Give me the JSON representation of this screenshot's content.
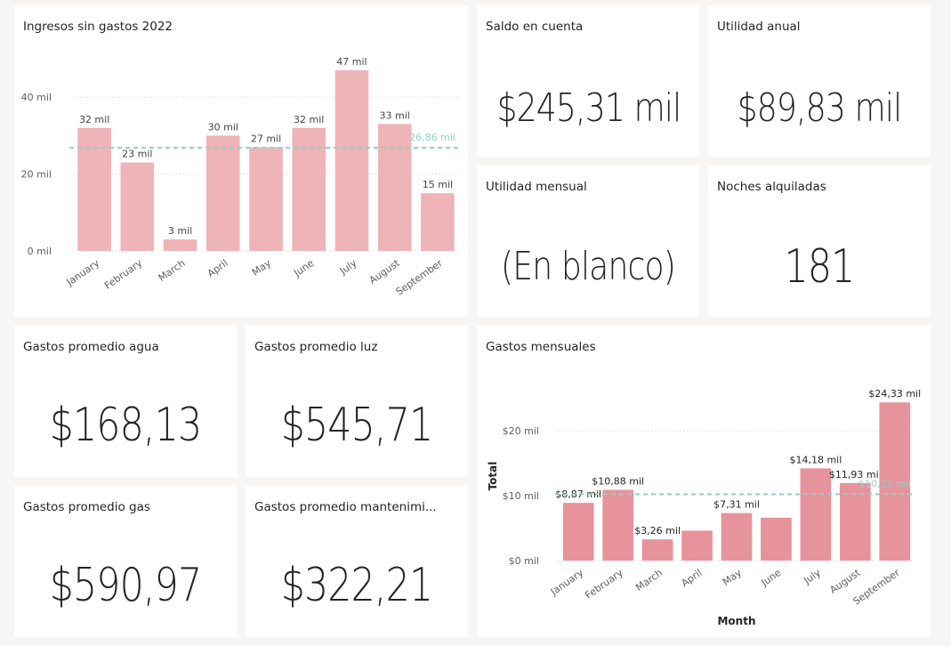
{
  "cards": {
    "income_chart_title": "Ingresos sin gastos 2022",
    "saldo": {
      "title": "Saldo en cuenta",
      "value": "$245,31 mil"
    },
    "utilidad_anual": {
      "title": "Utilidad anual",
      "value": "$89,83 mil"
    },
    "utilidad_mensual": {
      "title": "Utilidad mensual",
      "value": "(En blanco)"
    },
    "noches": {
      "title": "Noches alquiladas",
      "value": "181"
    },
    "agua": {
      "title": "Gastos promedio agua",
      "value": "$168,13"
    },
    "luz": {
      "title": "Gastos promedio luz",
      "value": "$545,71"
    },
    "gas": {
      "title": "Gastos promedio gas",
      "value": "$590,97"
    },
    "mantenimiento": {
      "title": "Gastos promedio mantenimi...",
      "value": "$322,21"
    },
    "expenses_chart_title": "Gastos mensuales"
  },
  "chart_data": [
    {
      "type": "bar",
      "title": "Ingresos sin gastos 2022",
      "categories": [
        "January",
        "February",
        "March",
        "April",
        "May",
        "June",
        "July",
        "August",
        "September"
      ],
      "values": [
        32,
        23,
        3,
        30,
        27,
        32,
        47,
        33,
        15
      ],
      "data_labels": [
        "32 mil",
        "23 mil",
        "3 mil",
        "30 mil",
        "27 mil",
        "32 mil",
        "47 mil",
        "33 mil",
        "15 mil"
      ],
      "y_ticks": [
        0,
        20,
        40
      ],
      "y_tick_labels": [
        "0 mil",
        "20 mil",
        "40 mil"
      ],
      "ylim": [
        0,
        50
      ],
      "average_line": {
        "value": 26.86,
        "label": "26,86 mil"
      },
      "xlabel": "",
      "ylabel": "",
      "grid": true,
      "colors": {
        "bar": "#eeb4b8",
        "average": "#8dd3c7"
      }
    },
    {
      "type": "bar",
      "title": "Gastos mensuales",
      "categories": [
        "January",
        "February",
        "March",
        "April",
        "May",
        "June",
        "July",
        "August",
        "September"
      ],
      "values": [
        8.87,
        10.88,
        3.26,
        4.6,
        7.31,
        6.6,
        14.18,
        11.93,
        24.33
      ],
      "data_labels": [
        "$8,87 mil",
        "$10,88 mil",
        "$3,26 mil",
        "",
        "$7,31 mil",
        "",
        "$14,18 mil",
        "$11,93 mil",
        "$24,33 mil"
      ],
      "y_ticks": [
        0,
        10,
        20
      ],
      "y_tick_labels": [
        "$0 mil",
        "$10 mil",
        "$20 mil"
      ],
      "ylim": [
        0,
        26
      ],
      "average_line": {
        "value": 10.22,
        "label": "$10,22 mil"
      },
      "xlabel": "Month",
      "ylabel": "Total",
      "grid": true,
      "colors": {
        "bar": "#e6939b",
        "average": "#8dd3c7"
      }
    }
  ]
}
